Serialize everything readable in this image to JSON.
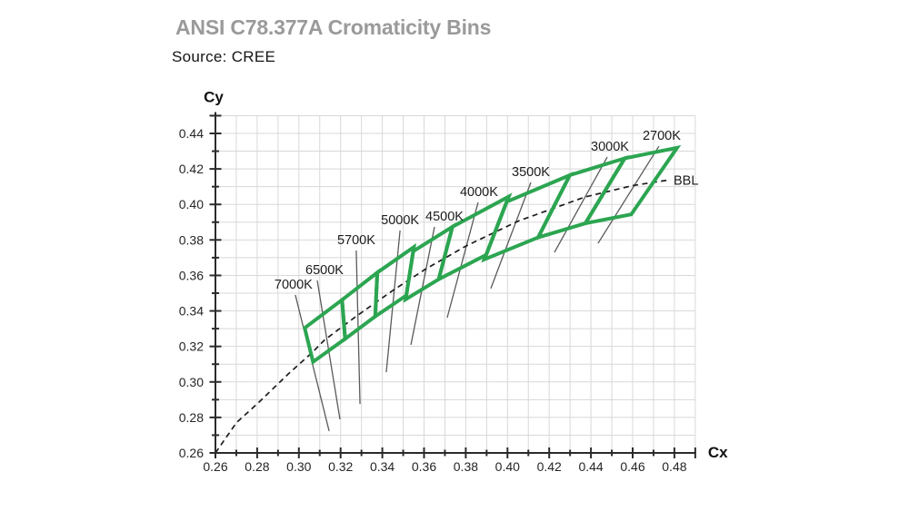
{
  "header": {
    "title": "ANSI C78.377A Cromaticity Bins",
    "source": "Source: CREE"
  },
  "chart_data": {
    "type": "chromaticity-bin-diagram",
    "title": "ANSI C78.377A Cromaticity Bins",
    "xlabel": "Cx",
    "ylabel": "Cy",
    "grid": true,
    "x_axis": {
      "min": 0.26,
      "max": 0.49,
      "major_step": 0.02,
      "minor_step": 0.01,
      "tick_labels": [
        "0.26",
        "0.28",
        "0.30",
        "0.32",
        "0.34",
        "0.36",
        "0.38",
        "0.40",
        "0.42",
        "0.44",
        "0.46",
        "0.48"
      ]
    },
    "y_axis": {
      "min": 0.26,
      "max": 0.45,
      "major_step": 0.02,
      "minor_step": 0.01,
      "tick_labels": [
        "0.26",
        "0.28",
        "0.30",
        "0.32",
        "0.34",
        "0.36",
        "0.38",
        "0.40",
        "0.42",
        "0.44"
      ]
    },
    "bins": [
      {
        "label": "6500K",
        "quad": [
          [
            0.3028,
            0.3304
          ],
          [
            0.3207,
            0.3462
          ],
          [
            0.3222,
            0.3243
          ],
          [
            0.3068,
            0.3113
          ]
        ]
      },
      {
        "label": "5700K",
        "quad": [
          [
            0.3207,
            0.3462
          ],
          [
            0.3376,
            0.3616
          ],
          [
            0.3366,
            0.3369
          ],
          [
            0.3222,
            0.3243
          ]
        ]
      },
      {
        "label": "5000K",
        "quad": [
          [
            0.3376,
            0.3616
          ],
          [
            0.3551,
            0.376
          ],
          [
            0.3515,
            0.3487
          ],
          [
            0.3366,
            0.3369
          ]
        ]
      },
      {
        "label": "4500K",
        "quad": [
          [
            0.3548,
            0.3736
          ],
          [
            0.3736,
            0.3874
          ],
          [
            0.367,
            0.3578
          ],
          [
            0.3512,
            0.3465
          ]
        ]
      },
      {
        "label": "4000K",
        "quad": [
          [
            0.3736,
            0.3874
          ],
          [
            0.4006,
            0.4044
          ],
          [
            0.3898,
            0.3716
          ],
          [
            0.367,
            0.3578
          ]
        ]
      },
      {
        "label": "3500K",
        "quad": [
          [
            0.3996,
            0.4015
          ],
          [
            0.4299,
            0.4165
          ],
          [
            0.4147,
            0.3814
          ],
          [
            0.3889,
            0.369
          ]
        ]
      },
      {
        "label": "3000K",
        "quad": [
          [
            0.4299,
            0.4165
          ],
          [
            0.4562,
            0.426
          ],
          [
            0.4373,
            0.3893
          ],
          [
            0.4147,
            0.3814
          ]
        ]
      },
      {
        "label": "2700K",
        "quad": [
          [
            0.4562,
            0.426
          ],
          [
            0.4813,
            0.4319
          ],
          [
            0.4593,
            0.3944
          ],
          [
            0.4373,
            0.3893
          ]
        ]
      }
    ],
    "isotherms": [
      {
        "label": "7000K",
        "line": [
          [
            0.2983,
            0.349
          ],
          [
            0.3145,
            0.2723
          ]
        ],
        "label_dx": -2
      },
      {
        "label": "6500K",
        "line": [
          [
            0.3088,
            0.3572
          ],
          [
            0.3197,
            0.2789
          ]
        ],
        "label_dx": 8
      },
      {
        "label": "5700K",
        "line": [
          [
            0.3275,
            0.374
          ],
          [
            0.3293,
            0.2876
          ]
        ],
        "label_dx": 0
      },
      {
        "label": "5000K",
        "line": [
          [
            0.3485,
            0.3853
          ],
          [
            0.3419,
            0.3055
          ]
        ],
        "label_dx": 0
      },
      {
        "label": "4500K",
        "line": [
          [
            0.365,
            0.3873
          ],
          [
            0.3537,
            0.3209
          ]
        ],
        "label_dx": 11
      },
      {
        "label": "4000K",
        "line": [
          [
            0.3859,
            0.4011
          ],
          [
            0.3711,
            0.3362
          ]
        ],
        "label_dx": 1
      },
      {
        "label": "3500K",
        "line": [
          [
            0.4112,
            0.4124
          ],
          [
            0.392,
            0.3526
          ]
        ],
        "label_dx": 0
      },
      {
        "label": "3000K",
        "line": [
          [
            0.4478,
            0.4267
          ],
          [
            0.4225,
            0.373
          ]
        ],
        "label_dx": 3
      },
      {
        "label": "2700K",
        "line": [
          [
            0.4726,
            0.4328
          ],
          [
            0.4434,
            0.3781
          ]
        ],
        "label_dx": 3
      }
    ],
    "bbl": {
      "label": "BBL",
      "points": [
        [
          0.26,
          0.26
        ],
        [
          0.27,
          0.277
        ],
        [
          0.2806,
          0.2883
        ],
        [
          0.2952,
          0.3048
        ],
        [
          0.3064,
          0.3166
        ],
        [
          0.3123,
          0.3236
        ],
        [
          0.3274,
          0.3369
        ],
        [
          0.3451,
          0.3516
        ],
        [
          0.3608,
          0.3636
        ],
        [
          0.3805,
          0.3768
        ],
        [
          0.4053,
          0.3907
        ],
        [
          0.4369,
          0.4041
        ],
        [
          0.4599,
          0.4106
        ],
        [
          0.477,
          0.4137
        ]
      ]
    },
    "colors": {
      "bin": "#2ca551",
      "grid": "#d8d8d8",
      "axis": "#2b2b2b",
      "tick_label": "#262626",
      "isotherm": "#5a5a5a",
      "bbl": "#1c1c1c",
      "cct_label": "#1c1c1c",
      "title": "#9a9a9a",
      "source": "#141414"
    }
  }
}
